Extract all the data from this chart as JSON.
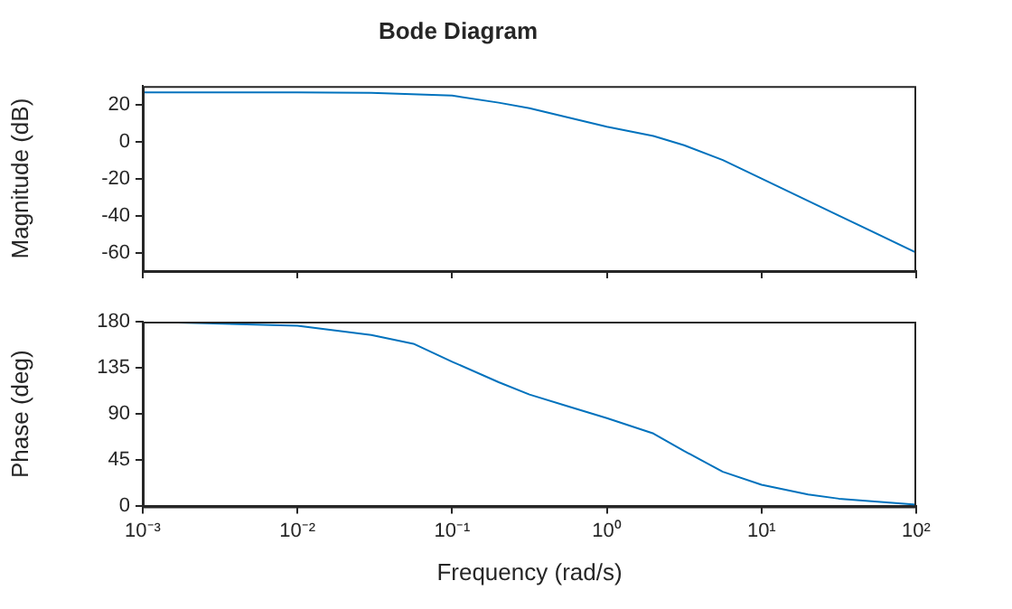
{
  "chart_data": [
    {
      "type": "line",
      "title": "Bode Diagram",
      "ylabel": "Magnitude (dB)",
      "log": "x",
      "tick_labels": "y",
      "x": [
        0.001,
        0.01,
        0.03,
        0.1,
        0.2,
        0.316,
        0.562,
        1,
        2,
        3.16,
        5.62,
        10,
        31.6,
        100
      ],
      "series": [
        {
          "color": "#0072bd",
          "values": [
            26.5,
            26.5,
            26.3,
            24.8,
            21,
            18,
            13,
            8,
            3,
            -2,
            -10,
            -20,
            -40,
            -60
          ]
        }
      ],
      "xlim": [
        0.001,
        100
      ],
      "xticks": [
        {
          "value": 0.001,
          "label": null
        },
        {
          "value": 0.01,
          "label": null
        },
        {
          "value": 0.1,
          "label": null
        },
        {
          "value": 1,
          "label": null
        },
        {
          "value": 10,
          "label": null
        },
        {
          "value": 100,
          "label": null
        }
      ],
      "ylim": [
        -70,
        30
      ],
      "yticks": [
        -60,
        -40,
        -20,
        0,
        20
      ],
      "grid": false
    },
    {
      "type": "line",
      "xlabel": "Frequency (rad/s)",
      "ylabel": "Phase (deg)",
      "log": "x",
      "x": [
        0.001,
        0.01,
        0.03,
        0.0562,
        0.1,
        0.2,
        0.316,
        0.562,
        1,
        2,
        3.16,
        5.62,
        10,
        20,
        31.6,
        100
      ],
      "series": [
        {
          "color": "#0072bd",
          "values": [
            180,
            176,
            167,
            158.5,
            141,
            121,
            109,
            97.5,
            86,
            71,
            54,
            33.7,
            21,
            11.6,
            7.5,
            1.7
          ]
        }
      ],
      "xlim": [
        0.001,
        100
      ],
      "xticks": [
        {
          "value": 0.001,
          "label": "10⁻³"
        },
        {
          "value": 0.01,
          "label": "10⁻²"
        },
        {
          "value": 0.1,
          "label": "10⁻¹"
        },
        {
          "value": 1,
          "label": "10⁰"
        },
        {
          "value": 10,
          "label": "10¹"
        },
        {
          "value": 100,
          "label": "10²"
        }
      ],
      "ylim": [
        0,
        180
      ],
      "yticks": [
        0,
        45,
        90,
        135,
        180
      ],
      "grid": false
    }
  ]
}
